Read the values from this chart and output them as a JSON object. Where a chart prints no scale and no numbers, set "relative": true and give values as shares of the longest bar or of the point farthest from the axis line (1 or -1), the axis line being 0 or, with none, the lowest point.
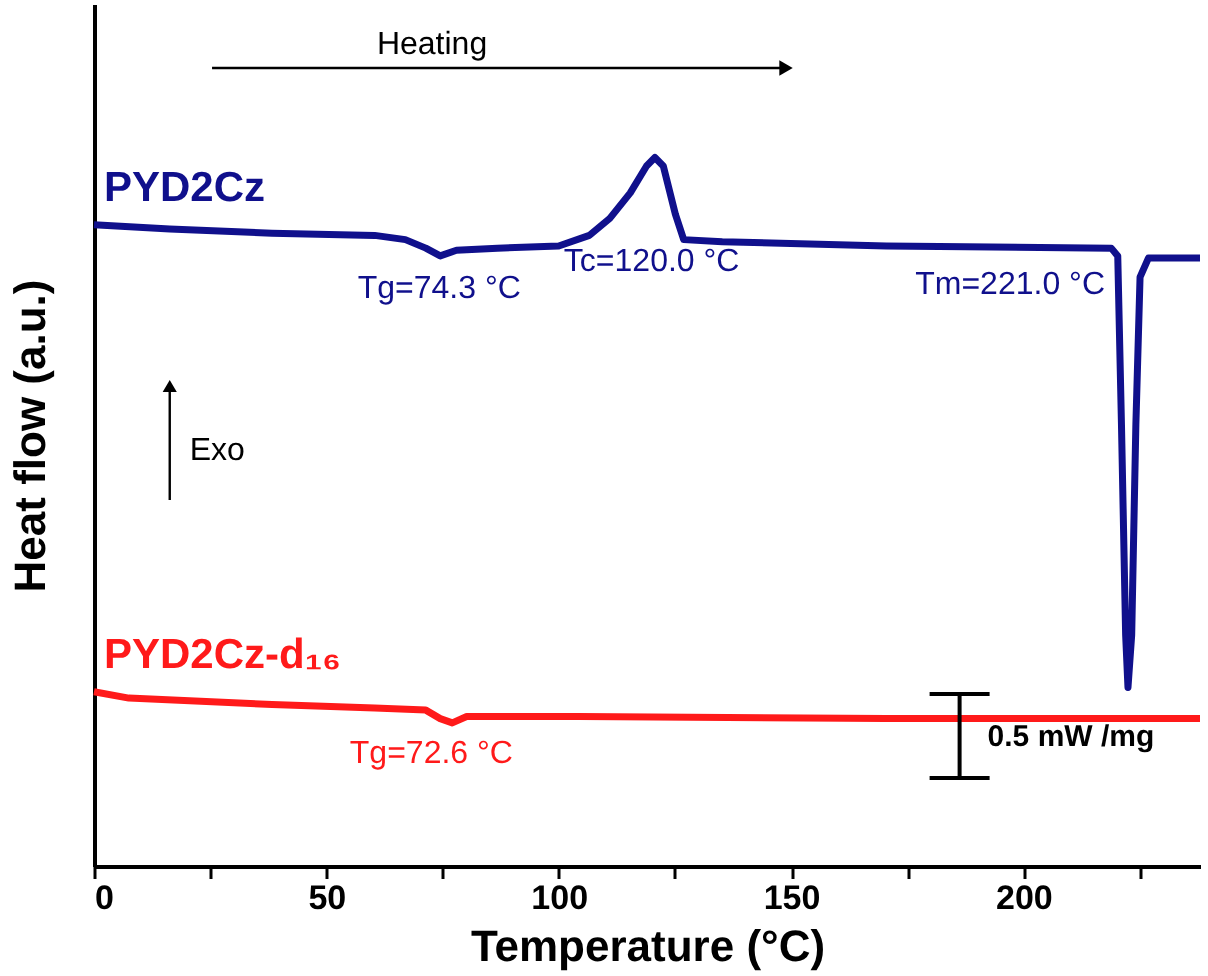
{
  "chart_data": {
    "type": "line",
    "xlabel": "Temperature (°C)",
    "ylabel": "Heat flow (a.u.)",
    "relative": true,
    "xlim": [
      0,
      238
    ],
    "xticks": [
      0,
      {
        "value": 25,
        "label": null
      },
      50,
      {
        "value": 75,
        "label": null
      },
      100,
      {
        "value": 125,
        "label": null
      },
      150,
      {
        "value": 175,
        "label": null
      },
      200,
      {
        "value": 225,
        "label": null
      }
    ],
    "legend": false,
    "grid": false,
    "tick_labels": "x",
    "line_style": "solid",
    "marker": "none",
    "series": [
      {
        "name": "PYD2Cz",
        "color": "#10108c",
        "x": [
          0,
          16.3,
          38.3,
          60.4,
          67,
          71.4,
          74.5,
          78,
          86.8,
          100,
          106.6,
          111,
          115.4,
          118.9,
          120.7,
          122.5,
          125.1,
          126.9,
          135.2,
          170.5,
          218.9,
          220.3,
          221.1,
          222,
          222.5,
          223.3,
          224.2,
          225.1,
          226.9,
          238
        ],
        "values": [
          0.905,
          0.899,
          0.893,
          0.89,
          0.884,
          0.872,
          0.861,
          0.869,
          0.872,
          0.875,
          0.89,
          0.914,
          0.95,
          0.988,
          1,
          0.988,
          0.92,
          0.884,
          0.881,
          0.875,
          0.872,
          0.861,
          0.623,
          0.326,
          0.252,
          0.326,
          0.623,
          0.831,
          0.858,
          0.858
        ]
      },
      {
        "name": "PYD2Cz-d₁₆",
        "color": "#ff1a1a",
        "x": [
          0,
          7.5,
          38.3,
          60.4,
          71.4,
          74.5,
          77.1,
          80.2,
          104.4,
          170.5,
          238
        ],
        "values": [
          0.246,
          0.237,
          0.228,
          0.223,
          0.22,
          0.208,
          0.202,
          0.211,
          0.211,
          0.208,
          0.208
        ]
      }
    ],
    "annotations": [
      {
        "text": "Tg=74.3 °C",
        "x": 74.3,
        "y": 0.866
      },
      {
        "text": "Tc=120.0 °C",
        "x": 120.0,
        "y": 0.994
      },
      {
        "text": "Tm=221.0 °C",
        "x": 221.0,
        "y": 0.872
      },
      {
        "text": "Tg=72.6 °C",
        "x": 72.6,
        "y": 0.21
      },
      "Heating",
      "Exo",
      "0.5 mW /mg"
    ]
  }
}
